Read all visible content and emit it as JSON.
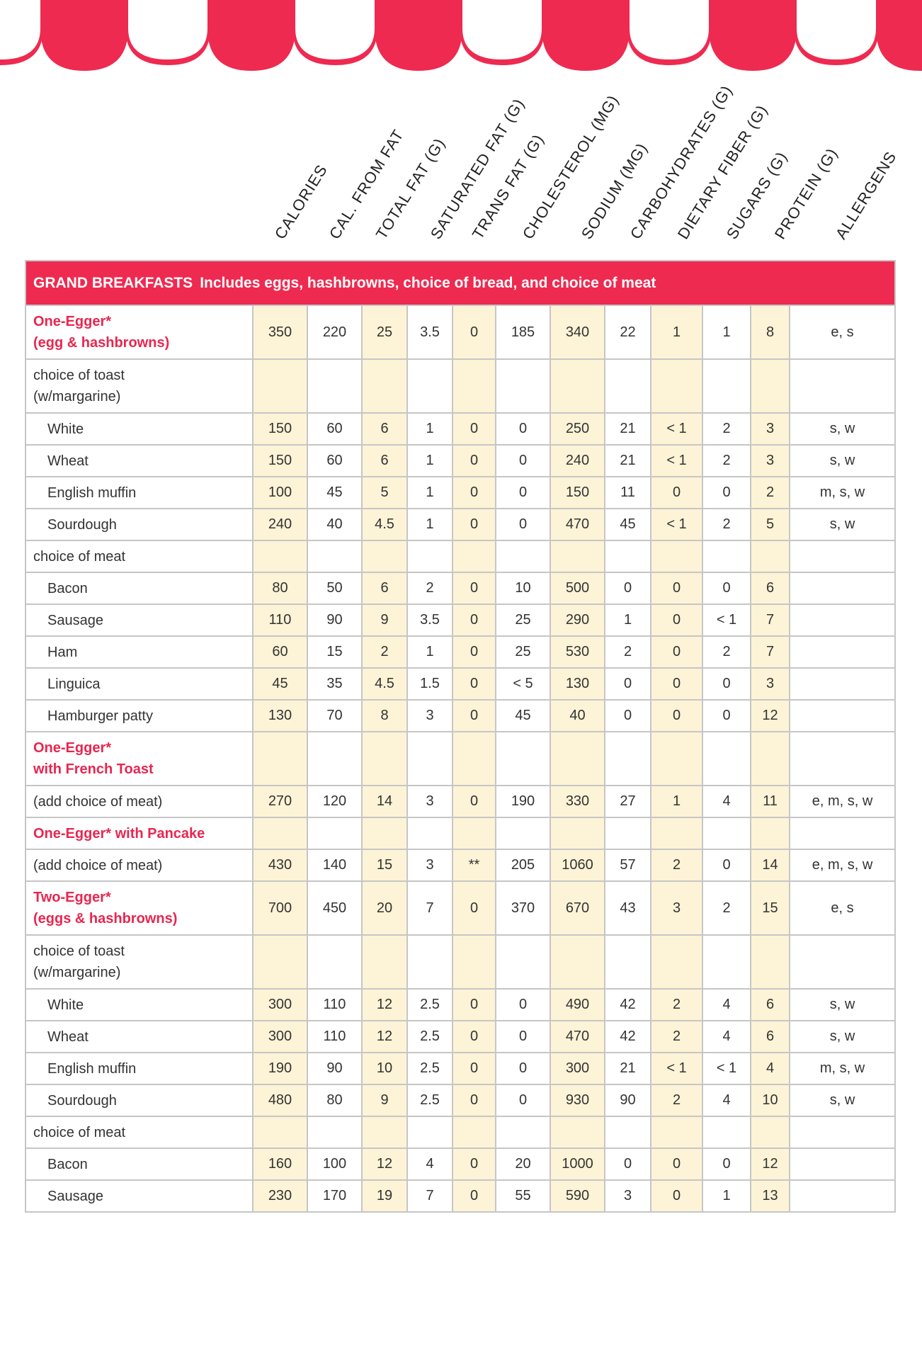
{
  "colors": {
    "accent": "#ee2a50",
    "item_name": "#e8264f",
    "shaded_column": "#fdf3d6",
    "grid": "#c6c6c6"
  },
  "headers": [
    "CALORIES",
    "CAL. FROM FAT",
    "TOTAL FAT (G)",
    "SATURATED FAT (G)",
    "TRANS FAT (G)",
    "CHOLESTEROL (MG)",
    "SODIUM (MG)",
    "CARBOHYDRATES (G)",
    "DIETARY FIBER (G)",
    "SUGARS (G)",
    "PROTEIN (G)",
    "ALLERGENS"
  ],
  "section": {
    "title": "GRAND BREAKFASTS",
    "subtitle": "Includes eggs, hashbrowns, choice of bread, and choice of meat"
  },
  "rows": [
    {
      "type": "item",
      "name": "One-Egger*\n(egg & hashbrowns)",
      "values": [
        "350",
        "220",
        "25",
        "3.5",
        "0",
        "185",
        "340",
        "22",
        "1",
        "1",
        "8",
        "e, s"
      ]
    },
    {
      "type": "group",
      "name": "choice of toast\n(w/margarine)",
      "values": []
    },
    {
      "type": "sub",
      "name": "White",
      "values": [
        "150",
        "60",
        "6",
        "1",
        "0",
        "0",
        "250",
        "21",
        "< 1",
        "2",
        "3",
        "s, w"
      ]
    },
    {
      "type": "sub",
      "name": "Wheat",
      "values": [
        "150",
        "60",
        "6",
        "1",
        "0",
        "0",
        "240",
        "21",
        "< 1",
        "2",
        "3",
        "s, w"
      ]
    },
    {
      "type": "sub",
      "name": "English muffin",
      "values": [
        "100",
        "45",
        "5",
        "1",
        "0",
        "0",
        "150",
        "11",
        "0",
        "0",
        "2",
        "m, s, w"
      ]
    },
    {
      "type": "sub",
      "name": "Sourdough",
      "values": [
        "240",
        "40",
        "4.5",
        "1",
        "0",
        "0",
        "470",
        "45",
        "< 1",
        "2",
        "5",
        "s, w"
      ]
    },
    {
      "type": "group",
      "name": "choice of meat",
      "values": []
    },
    {
      "type": "sub",
      "name": "Bacon",
      "values": [
        "80",
        "50",
        "6",
        "2",
        "0",
        "10",
        "500",
        "0",
        "0",
        "0",
        "6",
        ""
      ]
    },
    {
      "type": "sub",
      "name": "Sausage",
      "values": [
        "110",
        "90",
        "9",
        "3.5",
        "0",
        "25",
        "290",
        "1",
        "0",
        "< 1",
        "7",
        ""
      ]
    },
    {
      "type": "sub",
      "name": "Ham",
      "values": [
        "60",
        "15",
        "2",
        "1",
        "0",
        "25",
        "530",
        "2",
        "0",
        "2",
        "7",
        ""
      ]
    },
    {
      "type": "sub",
      "name": "Linguica",
      "values": [
        "45",
        "35",
        "4.5",
        "1.5",
        "0",
        "< 5",
        "130",
        "0",
        "0",
        "0",
        "3",
        ""
      ]
    },
    {
      "type": "sub",
      "name": "Hamburger patty",
      "values": [
        "130",
        "70",
        "8",
        "3",
        "0",
        "45",
        "40",
        "0",
        "0",
        "0",
        "12",
        ""
      ]
    },
    {
      "type": "item",
      "name": "One-Egger*\nwith French Toast",
      "values": []
    },
    {
      "type": "group",
      "name": "(add choice of meat)",
      "values": [
        "270",
        "120",
        "14",
        "3",
        "0",
        "190",
        "330",
        "27",
        "1",
        "4",
        "11",
        "e, m, s, w"
      ]
    },
    {
      "type": "item",
      "name": "One-Egger* with Pancake",
      "values": []
    },
    {
      "type": "group",
      "name": "(add choice of meat)",
      "values": [
        "430",
        "140",
        "15",
        "3",
        "**",
        "205",
        "1060",
        "57",
        "2",
        "0",
        "14",
        "e, m, s, w"
      ]
    },
    {
      "type": "item",
      "name": "Two-Egger*\n(eggs & hashbrowns)",
      "values": [
        "700",
        "450",
        "20",
        "7",
        "0",
        "370",
        "670",
        "43",
        "3",
        "2",
        "15",
        "e, s"
      ]
    },
    {
      "type": "group",
      "name": "choice of toast\n(w/margarine)",
      "values": []
    },
    {
      "type": "sub",
      "name": "White",
      "values": [
        "300",
        "110",
        "12",
        "2.5",
        "0",
        "0",
        "490",
        "42",
        "2",
        "4",
        "6",
        "s, w"
      ]
    },
    {
      "type": "sub",
      "name": "Wheat",
      "values": [
        "300",
        "110",
        "12",
        "2.5",
        "0",
        "0",
        "470",
        "42",
        "2",
        "4",
        "6",
        "s, w"
      ]
    },
    {
      "type": "sub",
      "name": "English muffin",
      "values": [
        "190",
        "90",
        "10",
        "2.5",
        "0",
        "0",
        "300",
        "21",
        "< 1",
        "< 1",
        "4",
        "m, s, w"
      ]
    },
    {
      "type": "sub",
      "name": "Sourdough",
      "values": [
        "480",
        "80",
        "9",
        "2.5",
        "0",
        "0",
        "930",
        "90",
        "2",
        "4",
        "10",
        "s, w"
      ]
    },
    {
      "type": "group",
      "name": "choice of meat",
      "values": []
    },
    {
      "type": "sub",
      "name": "Bacon",
      "values": [
        "160",
        "100",
        "12",
        "4",
        "0",
        "20",
        "1000",
        "0",
        "0",
        "0",
        "12",
        ""
      ]
    },
    {
      "type": "sub",
      "name": "Sausage",
      "values": [
        "230",
        "170",
        "19",
        "7",
        "0",
        "55",
        "590",
        "3",
        "0",
        "1",
        "13",
        ""
      ]
    }
  ]
}
